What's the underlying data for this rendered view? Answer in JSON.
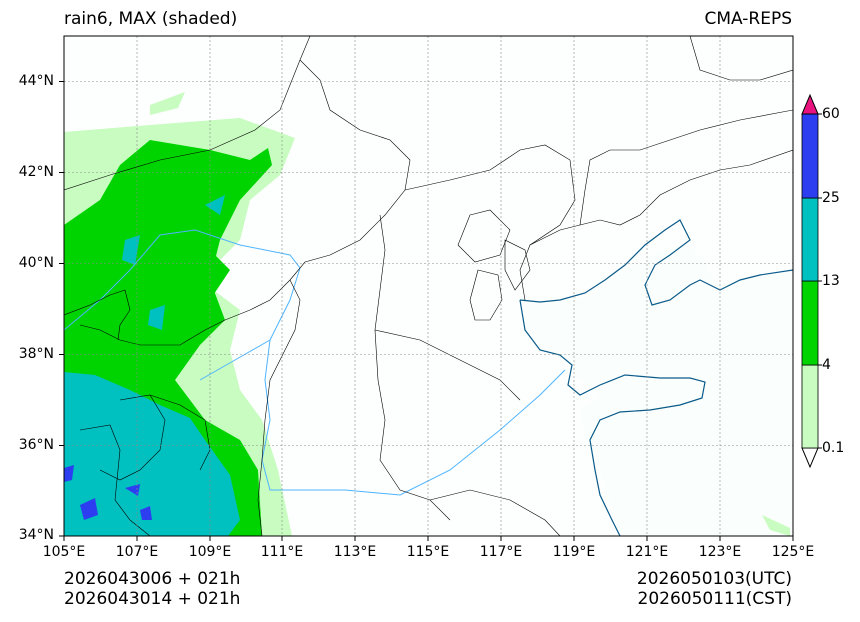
{
  "header": {
    "title_left": "rain6, MAX (shaded)",
    "title_right": "CMA-REPS"
  },
  "map": {
    "lon_range": [
      105,
      125
    ],
    "lat_range": [
      34,
      45
    ],
    "lat_ticks": [
      "44°N",
      "42°N",
      "40°N",
      "38°N",
      "36°N",
      "34°N"
    ],
    "lon_ticks": [
      "105°E",
      "107°E",
      "109°E",
      "111°E",
      "113°E",
      "115°E",
      "117°E",
      "119°E",
      "121°E",
      "123°E",
      "125°E"
    ],
    "colors": {
      "ocean": "#fafffd",
      "coast": "#0a5a8a",
      "river": "#4fb4ff",
      "border": "#000000",
      "grid": "#8c8c8c"
    }
  },
  "colorbar": {
    "levels": [
      "0.1",
      "4",
      "13",
      "25",
      "60"
    ],
    "colors": [
      "#c8fcc0",
      "#00d400",
      "#00c0c0",
      "#2d3ef0"
    ],
    "under_color": "#ffffff",
    "over_color": "#e8137e"
  },
  "footer": {
    "init_utc": "2026043006  +  021h",
    "init_cst": "2026043014  +  021h",
    "valid_utc": "2026050103(UTC)",
    "valid_cst": "2026050111(CST)"
  }
}
